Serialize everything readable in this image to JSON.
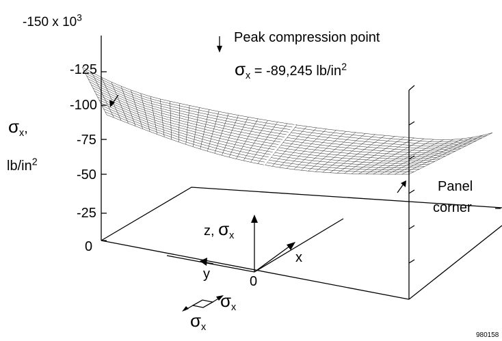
{
  "chart_data": {
    "type": "surface",
    "z_multiplier_label": {
      "prefix": "-150 x 10",
      "exp": "3"
    },
    "zlabel": {
      "sym": "σ",
      "sub": "x",
      "comma": ",",
      "units_base": "lb/in",
      "units_exp": "2"
    },
    "z_ticks": [
      "-125",
      "-100",
      "-75",
      "-50",
      "-25",
      "0"
    ],
    "zlim": [
      0,
      -150000
    ],
    "annotation": {
      "title": "Peak compression point",
      "eq_sym": "σ",
      "eq_sub": "x",
      "eq_text": " = -89,245 lb/in",
      "eq_exp": "2",
      "value": -89245
    },
    "corner_label": {
      "line1": "Panel",
      "line2": "corner"
    },
    "axes_labels": {
      "z_axis": {
        "prefix": "z, ",
        "sym": "σ",
        "sub": "x"
      },
      "x_axis": "x",
      "y_axis": "y",
      "origin": "0"
    },
    "stress_legend": {
      "sym": "σ",
      "sub": "x"
    },
    "surface_approx": {
      "description_values": "sigma_x over panel; edges near -90000 at peak corner, ~-60000 to -70000 interior"
    },
    "figure_id": "980158"
  }
}
